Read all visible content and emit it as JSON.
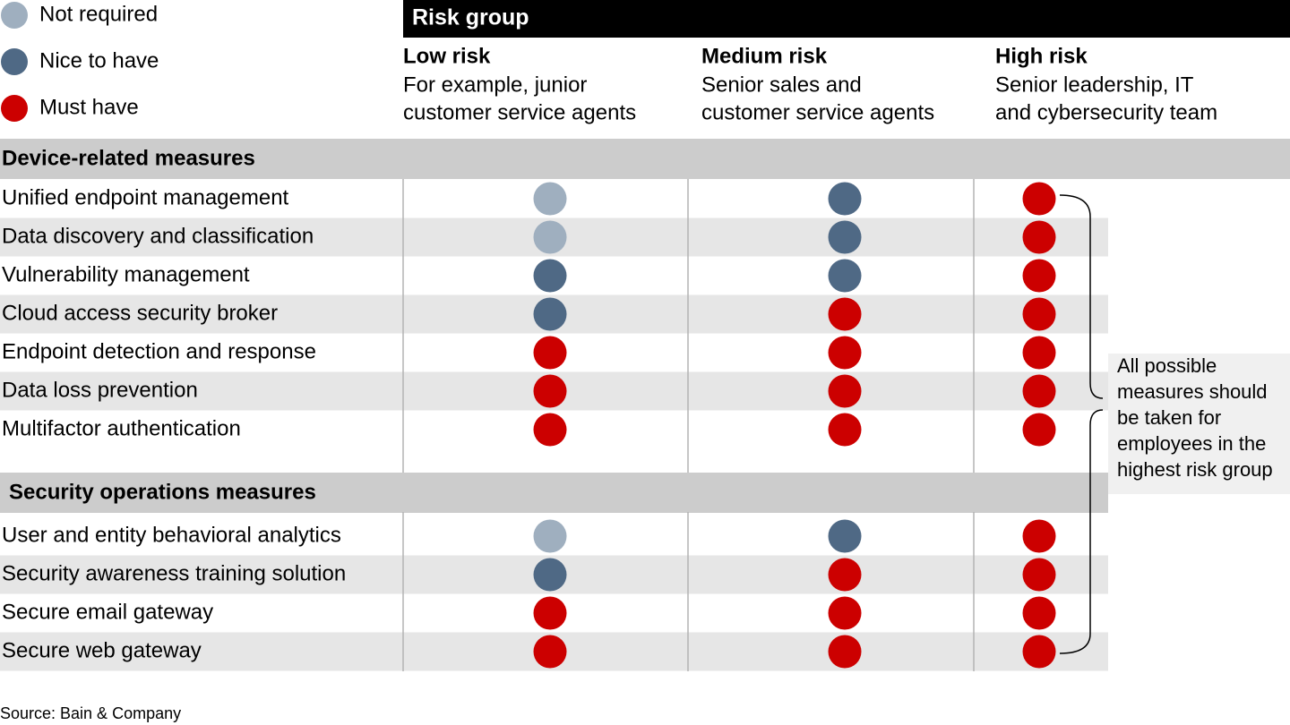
{
  "legend": [
    {
      "label": "Not required",
      "color": "#9fafbf"
    },
    {
      "label": "Nice to have",
      "color": "#4f6985"
    },
    {
      "label": "Must have",
      "color": "#cc0000"
    }
  ],
  "header": {
    "title": "Risk group"
  },
  "columns": [
    {
      "name": "Low risk",
      "description": [
        "For example, junior",
        "customer service agents"
      ]
    },
    {
      "name": "Medium risk",
      "description": [
        "Senior sales and",
        "customer service agents"
      ]
    },
    {
      "name": "High risk",
      "description": [
        "Senior leadership, IT",
        "and cybersecurity team"
      ]
    }
  ],
  "sections": [
    {
      "title": "Device-related measures",
      "rows": [
        {
          "label": "Unified endpoint management",
          "levels": [
            0,
            1,
            2
          ]
        },
        {
          "label": "Data discovery and classification",
          "levels": [
            0,
            1,
            2
          ]
        },
        {
          "label": "Vulnerability management",
          "levels": [
            1,
            1,
            2
          ]
        },
        {
          "label": "Cloud access security broker",
          "levels": [
            1,
            2,
            2
          ]
        },
        {
          "label": "Endpoint detection and response",
          "levels": [
            2,
            2,
            2
          ]
        },
        {
          "label": "Data loss prevention",
          "levels": [
            2,
            2,
            2
          ]
        },
        {
          "label": "Multifactor authentication",
          "levels": [
            2,
            2,
            2
          ]
        }
      ]
    },
    {
      "title": "Security operations measures",
      "rows": [
        {
          "label": "User and entity behavioral analytics",
          "levels": [
            0,
            1,
            2
          ]
        },
        {
          "label": "Security awareness training solution",
          "levels": [
            1,
            2,
            2
          ]
        },
        {
          "label": "Secure email gateway",
          "levels": [
            2,
            2,
            2
          ]
        },
        {
          "label": "Secure web gateway",
          "levels": [
            2,
            2,
            2
          ]
        }
      ]
    }
  ],
  "annotation": [
    "All possible",
    "measures should",
    "be taken for",
    "employees in the",
    "highest risk group"
  ],
  "source": "Source: Bain & Company"
}
